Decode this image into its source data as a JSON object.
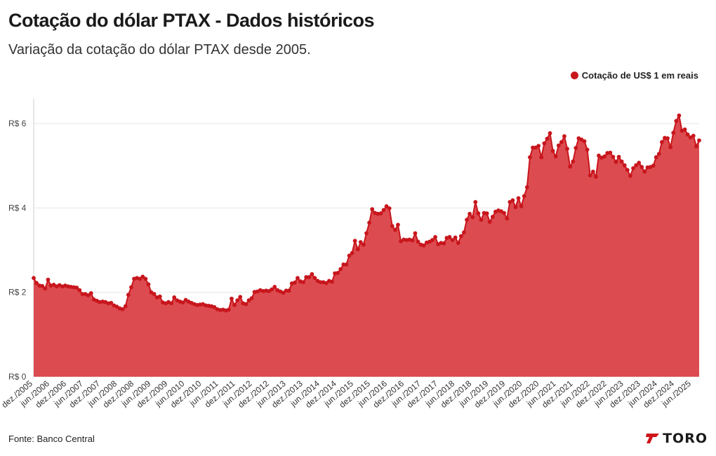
{
  "header": {
    "title": "Cotação do dólar PTAX - Dados históricos",
    "subtitle": "Variação da cotação do dólar PTAX desde 2005."
  },
  "footer": {
    "source": "Fonte: Banco Central",
    "logo_text": "TORO",
    "logo_icon": "toro-logo-icon"
  },
  "colors": {
    "series_line": "#c8161d",
    "series_fill": "#dc4b4f",
    "grid": "#e6e6e6",
    "axis": "#cfcfcf"
  },
  "chart_data": {
    "type": "area",
    "title": "Cotação do dólar PTAX - Dados históricos",
    "subtitle": "Variação da cotação do dólar PTAX desde 2005.",
    "legend_position": "top-right",
    "grid": true,
    "ylim": [
      0,
      6.6
    ],
    "y_ticks": [
      0,
      2,
      4,
      6
    ],
    "y_tick_labels": [
      "R$ 0",
      "R$ 2",
      "R$ 4",
      "R$ 6"
    ],
    "x_tick_labels": [
      "dez./2005",
      "jun./2006",
      "dez./2006",
      "jun./2007",
      "dez./2007",
      "jun./2008",
      "dez./2008",
      "jun./2009",
      "dez./2009",
      "jun./2010",
      "dez./2010",
      "jun./2011",
      "dez./2011",
      "jun./2012",
      "dez./2012",
      "jun./2013",
      "dez./2013",
      "jun./2014",
      "dez./2014",
      "jun./2015",
      "dez./2015",
      "jun./2016",
      "dez./2016",
      "jun./2017",
      "dez./2017",
      "jun./2018",
      "dez./2018",
      "jun./2019",
      "dez./2019",
      "jun./2020",
      "dez./2020",
      "jun./2021",
      "dez./2021",
      "jun./2022",
      "dez./2022",
      "jun./2023",
      "dez./2023",
      "jun./2024",
      "dez./2024",
      "jun./2025"
    ],
    "series": [
      {
        "name": "Cotação de US$ 1 em reais",
        "start": "2005-12",
        "values": [
          2.34,
          2.22,
          2.16,
          2.15,
          2.09,
          2.3,
          2.16,
          2.18,
          2.14,
          2.17,
          2.14,
          2.16,
          2.14,
          2.13,
          2.12,
          2.11,
          2.05,
          1.96,
          1.96,
          1.93,
          1.98,
          1.83,
          1.8,
          1.77,
          1.78,
          1.77,
          1.74,
          1.75,
          1.69,
          1.66,
          1.62,
          1.6,
          1.67,
          1.94,
          2.12,
          2.32,
          2.34,
          2.32,
          2.37,
          2.32,
          2.19,
          2.0,
          1.96,
          1.88,
          1.9,
          1.76,
          1.74,
          1.77,
          1.74,
          1.88,
          1.81,
          1.78,
          1.76,
          1.82,
          1.78,
          1.75,
          1.72,
          1.7,
          1.71,
          1.72,
          1.69,
          1.68,
          1.67,
          1.65,
          1.6,
          1.58,
          1.59,
          1.57,
          1.59,
          1.85,
          1.7,
          1.81,
          1.89,
          1.74,
          1.72,
          1.81,
          1.86,
          2.01,
          2.02,
          2.05,
          2.03,
          2.04,
          2.03,
          2.07,
          2.13,
          2.05,
          2.02,
          1.99,
          2.04,
          2.04,
          2.21,
          2.23,
          2.34,
          2.26,
          2.24,
          2.36,
          2.36,
          2.43,
          2.34,
          2.27,
          2.24,
          2.24,
          2.22,
          2.27,
          2.25,
          2.45,
          2.46,
          2.55,
          2.66,
          2.66,
          2.87,
          2.93,
          3.22,
          3.02,
          3.19,
          3.13,
          3.4,
          3.65,
          3.97,
          3.88,
          3.86,
          3.87,
          3.95,
          4.04,
          3.99,
          3.57,
          3.48,
          3.6,
          3.21,
          3.25,
          3.24,
          3.25,
          3.23,
          3.4,
          3.2,
          3.13,
          3.11,
          3.18,
          3.2,
          3.24,
          3.31,
          3.14,
          3.17,
          3.16,
          3.29,
          3.31,
          3.24,
          3.3,
          3.17,
          3.33,
          3.42,
          3.72,
          3.86,
          3.78,
          4.14,
          3.87,
          3.72,
          3.88,
          3.87,
          3.67,
          3.79,
          3.91,
          3.94,
          3.92,
          3.88,
          3.75,
          4.14,
          4.18,
          4.02,
          4.23,
          4.04,
          4.28,
          4.49,
          5.2,
          5.43,
          5.43,
          5.47,
          5.2,
          5.53,
          5.64,
          5.77,
          5.35,
          5.22,
          5.48,
          5.56,
          5.7,
          5.4,
          4.98,
          5.1,
          5.42,
          5.65,
          5.62,
          5.58,
          5.38,
          4.77,
          4.86,
          4.74,
          5.24,
          5.19,
          5.22,
          5.3,
          5.31,
          5.21,
          5.09,
          5.21,
          5.1,
          5.01,
          4.9,
          4.76,
          4.94,
          5.01,
          5.07,
          4.97,
          4.86,
          4.96,
          4.97,
          5.0,
          5.2,
          5.28,
          5.56,
          5.66,
          5.65,
          5.44,
          5.78,
          6.06,
          6.19,
          5.83,
          5.86,
          5.74,
          5.67,
          5.71,
          5.46,
          5.6
        ]
      }
    ]
  }
}
